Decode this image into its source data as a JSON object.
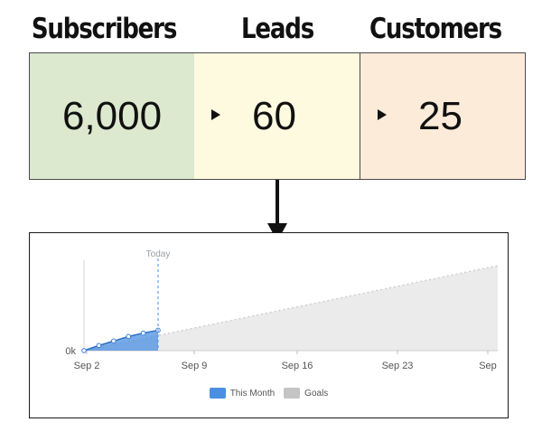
{
  "funnel": {
    "stages": [
      {
        "header": "Subscribers",
        "value": "6,000",
        "color": "#dde9cf"
      },
      {
        "header": "Leads",
        "value": "60",
        "color": "#fefae0"
      },
      {
        "header": "Customers",
        "value": "25",
        "color": "#fdebd9"
      }
    ]
  },
  "chart": {
    "today_label": "Today",
    "chart_data": {
      "type": "area",
      "x_tick_labels": [
        "Sep 2",
        "Sep 9",
        "Sep 16",
        "Sep 23",
        "Sep"
      ],
      "y_tick_labels": [
        "0k"
      ],
      "today_marker": "Sep 4",
      "series": [
        {
          "name": "This Month",
          "color": "#4a8fe2",
          "values": [
            0,
            0.18,
            0.34,
            0.5,
            0.62,
            0.72
          ]
        },
        {
          "name": "Goals",
          "color": "#c4c4c4",
          "values": [
            0,
            3.0
          ]
        }
      ]
    }
  }
}
